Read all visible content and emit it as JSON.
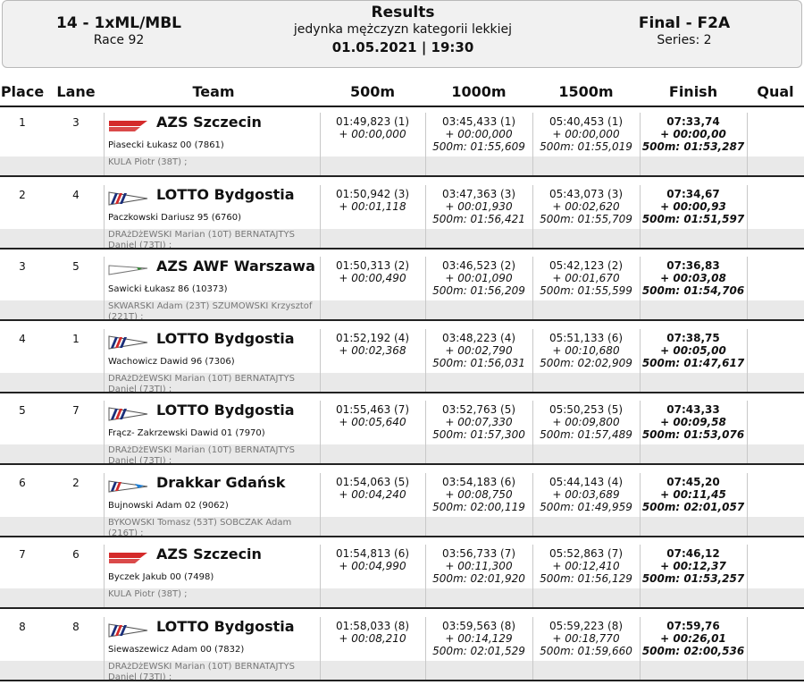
{
  "header": {
    "race_code": "14 - 1xML/MBL",
    "race_number": "Race 92",
    "title": "Results",
    "category": "jedynka mężczyzn kategorii lekkiej",
    "datetime": "01.05.2021 | 19:30",
    "stage": "Final - F2A",
    "series": "Series: 2"
  },
  "columns": {
    "place": "Place",
    "lane": "Lane",
    "team": "Team",
    "m500": "500m",
    "m1000": "1000m",
    "m1500": "1500m",
    "finish": "Finish",
    "qual": "Qual"
  },
  "colors": {
    "red": "#d42a2a",
    "navy": "#1b2f7a",
    "blue": "#1e7fd6",
    "green": "#2e8b2e",
    "header_bg": "#f1f1f1",
    "row_gray": "#e9e9e9"
  },
  "rows": [
    {
      "place": "1",
      "lane": "3",
      "team": "AZS Szczecin",
      "flag": "azs",
      "rower": "Piasecki Łukasz 00 (7861)",
      "coach": "KULA Piotr (38T) ;",
      "s500": [
        "01:49,823 (1)",
        "+ 00:00,000"
      ],
      "s1000": [
        "03:45,433 (1)",
        "+ 00:00,000",
        "500m: 01:55,609"
      ],
      "s1500": [
        "05:40,453 (1)",
        "+ 00:00,000",
        "500m: 01:55,019"
      ],
      "finish": [
        "07:33,74",
        "+ 00:00,00",
        "500m: 01:53,287"
      ],
      "qual": ""
    },
    {
      "place": "2",
      "lane": "4",
      "team": "LOTTO Bydgostia",
      "flag": "lotto",
      "rower": "Paczkowski Dariusz 95 (6760)",
      "coach": "DRAżDżEWSKI Marian (10T) BERNATAJTYS Daniel (73TI) ;",
      "s500": [
        "01:50,942 (3)",
        "+ 00:01,118"
      ],
      "s1000": [
        "03:47,363 (3)",
        "+ 00:01,930",
        "500m: 01:56,421"
      ],
      "s1500": [
        "05:43,073 (3)",
        "+ 00:02,620",
        "500m: 01:55,709"
      ],
      "finish": [
        "07:34,67",
        "+ 00:00,93",
        "500m: 01:51,597"
      ],
      "qual": ""
    },
    {
      "place": "3",
      "lane": "5",
      "team": "AZS AWF Warszawa",
      "flag": "awf",
      "rower": "Sawicki Łukasz 86 (10373)",
      "coach": "SKWARSKI Adam (23T) SZUMOWSKI Krzysztof (221T) ;",
      "s500": [
        "01:50,313 (2)",
        "+ 00:00,490"
      ],
      "s1000": [
        "03:46,523 (2)",
        "+ 00:01,090",
        "500m: 01:56,209"
      ],
      "s1500": [
        "05:42,123 (2)",
        "+ 00:01,670",
        "500m: 01:55,599"
      ],
      "finish": [
        "07:36,83",
        "+ 00:03,08",
        "500m: 01:54,706"
      ],
      "qual": ""
    },
    {
      "place": "4",
      "lane": "1",
      "team": "LOTTO Bydgostia",
      "flag": "lotto",
      "rower": "Wachowicz Dawid 96 (7306)",
      "coach": "DRAżDżEWSKI Marian (10T) BERNATAJTYS Daniel (73TI) ;",
      "s500": [
        "01:52,192 (4)",
        "+ 00:02,368"
      ],
      "s1000": [
        "03:48,223 (4)",
        "+ 00:02,790",
        "500m: 01:56,031"
      ],
      "s1500": [
        "05:51,133 (6)",
        "+ 00:10,680",
        "500m: 02:02,909"
      ],
      "finish": [
        "07:38,75",
        "+ 00:05,00",
        "500m: 01:47,617"
      ],
      "qual": ""
    },
    {
      "place": "5",
      "lane": "7",
      "team": "LOTTO Bydgostia",
      "flag": "lotto",
      "rower": "Frącz- Zakrzewski Dawid 01 (7970)",
      "coach": "DRAżDżEWSKI Marian (10T) BERNATAJTYS Daniel (73TI) ;",
      "s500": [
        "01:55,463 (7)",
        "+ 00:05,640"
      ],
      "s1000": [
        "03:52,763 (5)",
        "+ 00:07,330",
        "500m: 01:57,300"
      ],
      "s1500": [
        "05:50,253 (5)",
        "+ 00:09,800",
        "500m: 01:57,489"
      ],
      "finish": [
        "07:43,33",
        "+ 00:09,58",
        "500m: 01:53,076"
      ],
      "qual": ""
    },
    {
      "place": "6",
      "lane": "2",
      "team": "Drakkar Gdańsk",
      "flag": "drakkar",
      "rower": "Bujnowski Adam 02 (9062)",
      "coach": "BYKOWSKI Tomasz (53T) SOBCZAK Adam (216T) ;",
      "s500": [
        "01:54,063 (5)",
        "+ 00:04,240"
      ],
      "s1000": [
        "03:54,183 (6)",
        "+ 00:08,750",
        "500m: 02:00,119"
      ],
      "s1500": [
        "05:44,143 (4)",
        "+ 00:03,689",
        "500m: 01:49,959"
      ],
      "finish": [
        "07:45,20",
        "+ 00:11,45",
        "500m: 02:01,057"
      ],
      "qual": ""
    },
    {
      "place": "7",
      "lane": "6",
      "team": "AZS Szczecin",
      "flag": "azs",
      "rower": "Byczek Jakub 00 (7498)",
      "coach": "KULA Piotr (38T) ;",
      "s500": [
        "01:54,813 (6)",
        "+ 00:04,990"
      ],
      "s1000": [
        "03:56,733 (7)",
        "+ 00:11,300",
        "500m: 02:01,920"
      ],
      "s1500": [
        "05:52,863 (7)",
        "+ 00:12,410",
        "500m: 01:56,129"
      ],
      "finish": [
        "07:46,12",
        "+ 00:12,37",
        "500m: 01:53,257"
      ],
      "qual": ""
    },
    {
      "place": "8",
      "lane": "8",
      "team": "LOTTO Bydgostia",
      "flag": "lotto",
      "rower": "Siewaszewicz Adam 00 (7832)",
      "coach": "DRAżDżEWSKI Marian (10T) BERNATAJTYS Daniel (73TI) ;",
      "s500": [
        "01:58,033 (8)",
        "+ 00:08,210"
      ],
      "s1000": [
        "03:59,563 (8)",
        "+ 00:14,129",
        "500m: 02:01,529"
      ],
      "s1500": [
        "05:59,223 (8)",
        "+ 00:18,770",
        "500m: 01:59,660"
      ],
      "finish": [
        "07:59,76",
        "+ 00:26,01",
        "500m: 02:00,536"
      ],
      "qual": ""
    }
  ]
}
